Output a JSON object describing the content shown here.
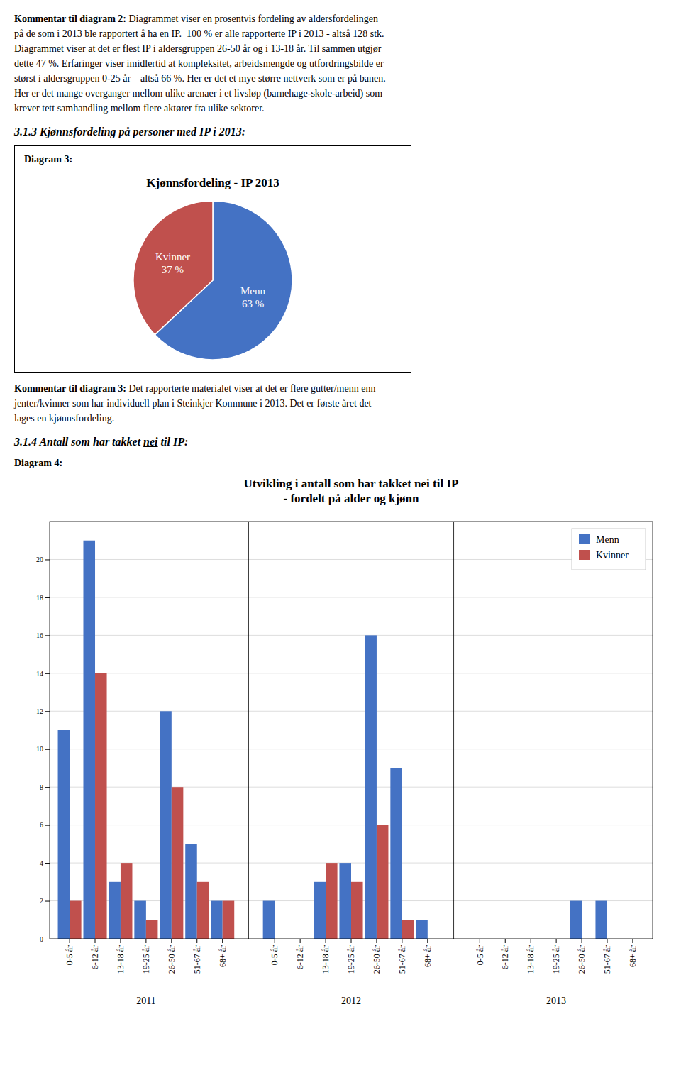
{
  "page_text": {
    "comment2": {
      "lead": "Kommentar til diagram 2:",
      "lines": [
        " Diagrammet viser en prosentvis fordeling av aldersfordelingen",
        "på de som i 2013 ble rapportert å ha en IP.  100 % er alle rapporterte IP i 2013 - altså 128 stk.",
        "Diagrammet viser at det er flest IP i aldersgruppen 26-50 år og i 13-18 år. Til sammen utgjør",
        "dette 47 %. Erfaringer viser imidlertid at kompleksitet, arbeidsmengde og utfordringsbilde er",
        "størst i aldersgruppen 0-25 år – altså 66 %. Her er det et mye større nettverk som er på banen.",
        "Her er det mange overganger mellom ulike arenaer i et livsløp (barnehage-skole-arbeid) som",
        "krever tett samhandling mellom flere aktører fra ulike sektorer."
      ]
    },
    "heading3": "3.1.3 Kjønnsfordeling på personer med IP i 2013:",
    "diagram3_label": "Diagram 3:",
    "comment3": {
      "lead": "Kommentar til diagram 3:",
      "lines": [
        " Det rapporterte materialet viser at det er flere gutter/menn enn",
        "jenter/kvinner som har individuell plan i Steinkjer Kommune i 2013. Det er første året det",
        "lages en kjønnsfordeling."
      ]
    },
    "heading4": [
      "3.1.4 Antall som har takket ",
      "nei",
      " til IP:"
    ],
    "diagram4_label": "Diagram 4:"
  },
  "chart_data": [
    {
      "type": "pie",
      "title": "Kjønnsfordeling - IP 2013",
      "categories": [
        "Menn",
        "Kvinner"
      ],
      "values": [
        63,
        37
      ],
      "value_labels": [
        "63 %",
        "37 %"
      ],
      "colors": [
        "#4472C4",
        "#C0504D"
      ],
      "data_labels": true
    },
    {
      "type": "bar",
      "title": "Utvikling i antall som har takket nei til IP\n- fordelt på alder og kjønn",
      "categories": [
        "0-5 år",
        "6-12 år",
        "13-18 år",
        "19-25 år",
        "26-50 år",
        "51-67 år",
        "68+ år",
        "0-5 år",
        "6-12 år",
        "13-18 år",
        "19-25 år",
        "26-50 år",
        "51-67 år",
        "68+ år",
        "0-5 år",
        "6-12 år",
        "13-18 år",
        "19-25 år",
        "26-50 år",
        "51-67 år",
        "68+ år"
      ],
      "category_groups": [
        "2011",
        "2012",
        "2013"
      ],
      "series": [
        {
          "name": "Menn",
          "color": "#4472C4",
          "values": [
            11,
            21,
            3,
            2,
            12,
            5,
            2,
            2,
            0,
            3,
            4,
            16,
            9,
            1,
            0,
            0,
            0,
            0,
            2,
            2,
            0
          ]
        },
        {
          "name": "Kvinner",
          "color": "#C0504D",
          "values": [
            2,
            14,
            4,
            1,
            8,
            3,
            2,
            0,
            0,
            4,
            3,
            6,
            1,
            0,
            0,
            0,
            0,
            0,
            0,
            0,
            0
          ]
        }
      ],
      "ylim": [
        0,
        22
      ],
      "yticks": [
        0,
        2,
        4,
        6,
        8,
        10,
        12,
        14,
        16,
        18,
        20
      ],
      "grid": true,
      "legend": "upper right"
    }
  ]
}
